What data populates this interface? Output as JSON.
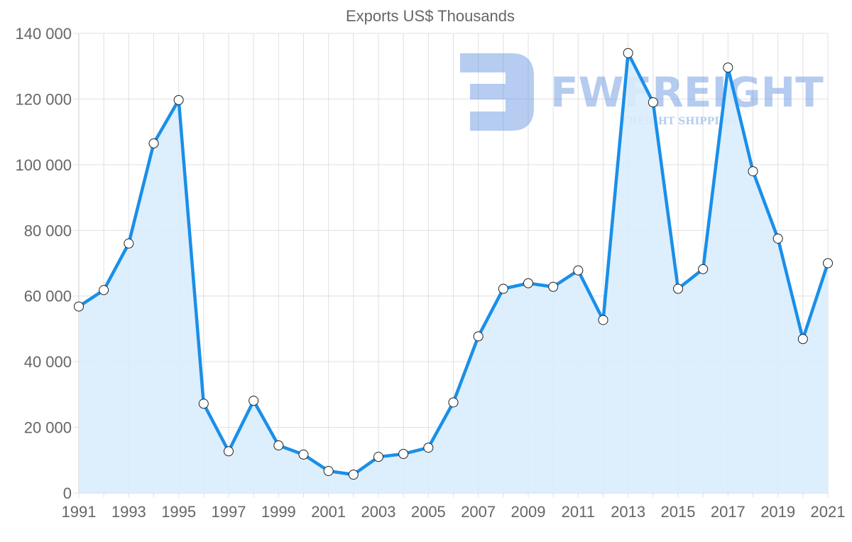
{
  "chart_data": {
    "type": "area",
    "title": "Exports US$ Thousands",
    "xlabel": "",
    "ylabel": "",
    "ylim": [
      0,
      140000
    ],
    "yticks": [
      0,
      20000,
      40000,
      60000,
      80000,
      100000,
      120000,
      140000
    ],
    "ytick_labels": [
      "0",
      "20 000",
      "40 000",
      "60 000",
      "80 000",
      "100 000",
      "120 000",
      "140 000"
    ],
    "xtick_labels": [
      "1991",
      "1993",
      "1995",
      "1997",
      "1999",
      "2001",
      "2003",
      "2005",
      "2007",
      "2009",
      "2011",
      "2013",
      "2015",
      "2017",
      "2019",
      "2021"
    ],
    "grid": true,
    "legend": null,
    "categories": [
      "1991",
      "1992",
      "1993",
      "1994",
      "1995",
      "1996",
      "1997",
      "1998",
      "1999",
      "2000",
      "2001",
      "2002",
      "2003",
      "2004",
      "2005",
      "2006",
      "2007",
      "2008",
      "2009",
      "2010",
      "2011",
      "2012",
      "2013",
      "2014",
      "2015",
      "2016",
      "2017",
      "2018",
      "2019",
      "2020",
      "2021"
    ],
    "series": [
      {
        "name": "Exports",
        "values": [
          56800,
          61800,
          76000,
          106500,
          119700,
          27200,
          12700,
          28100,
          14500,
          11700,
          6700,
          5600,
          11000,
          11900,
          13800,
          27600,
          47700,
          62200,
          63900,
          62800,
          67800,
          52700,
          134000,
          119000,
          62200,
          68200,
          129600,
          98000,
          77500,
          46900,
          70000
        ]
      }
    ],
    "colors": {
      "line": "#1a8fe8",
      "fill": "#d9ecfc",
      "grid": "#e0e0e0",
      "text": "#666666"
    }
  },
  "watermark": {
    "brand": "FWFREIGHT",
    "tagline": "FREIGHT SHIPPING"
  }
}
